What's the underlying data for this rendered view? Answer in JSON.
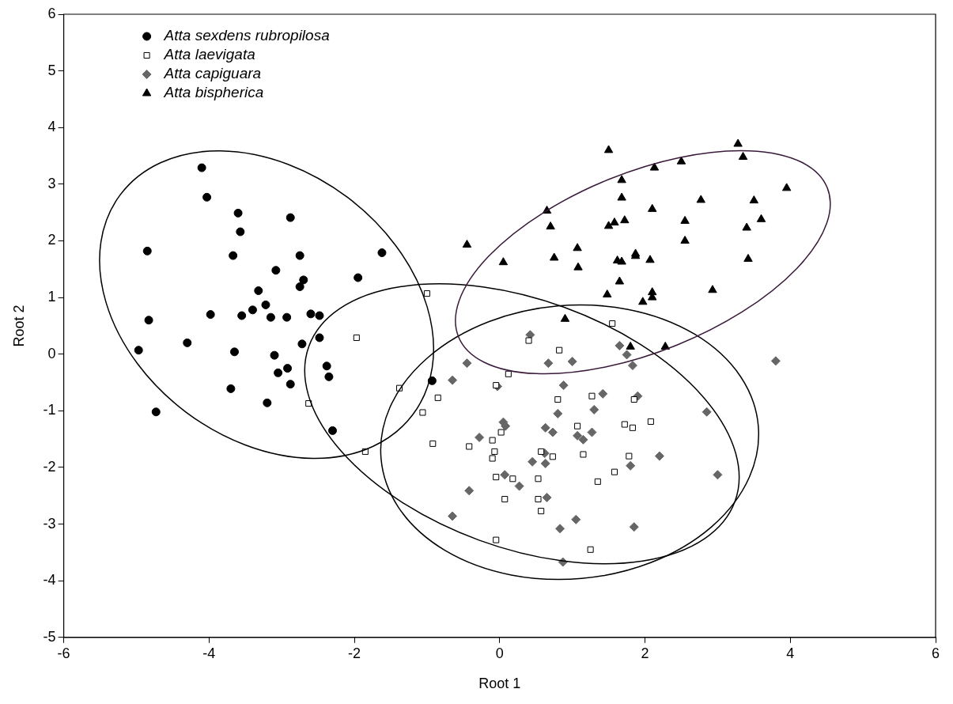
{
  "chart_data": {
    "type": "scatter",
    "xlabel": "Root 1",
    "ylabel": "Root 2",
    "xlim": [
      -6,
      6
    ],
    "xticks": [
      -6,
      -4,
      -2,
      0,
      2,
      4,
      6
    ],
    "ylim": [
      -5,
      6
    ],
    "yticks": [
      -5,
      -4,
      -3,
      -2,
      -1,
      0,
      1,
      2,
      3,
      4,
      5,
      6
    ],
    "grid": false,
    "legend": "top left",
    "series": [
      {
        "name": "Atta sexdens rubropilosa",
        "color": "#000000",
        "marker": "circle",
        "x": [
          -4.1,
          -4.03,
          -4.85,
          -3.6,
          -3.57,
          -2.88,
          -3.67,
          -1.62,
          -3.08,
          -2.75,
          -2.7,
          -2.75,
          -1.95,
          -3.32,
          -3.22,
          -3.4,
          -3.55,
          -3.98,
          -4.83,
          -3.15,
          -2.93,
          -2.6,
          -2.48,
          -2.48,
          -2.72,
          -3.65,
          -4.97,
          -4.3,
          -3.1,
          -3.05,
          -2.92,
          -2.88,
          -2.38,
          -2.35,
          -3.7,
          -3.2,
          -4.73,
          -2.3,
          -0.93
        ],
        "values": [
          3.29,
          2.77,
          1.82,
          2.49,
          2.16,
          2.41,
          1.74,
          1.79,
          1.48,
          1.74,
          1.31,
          1.19,
          1.35,
          1.12,
          0.87,
          0.78,
          0.68,
          0.7,
          0.6,
          0.65,
          0.65,
          0.71,
          0.68,
          0.29,
          0.18,
          0.04,
          0.07,
          0.2,
          -0.02,
          -0.33,
          -0.25,
          -0.53,
          -0.21,
          -0.4,
          -0.61,
          -0.86,
          -1.02,
          -1.35,
          -0.47
        ]
      },
      {
        "name": "Atta laevigata",
        "color": "#000000",
        "marker": "square",
        "x": [
          -1.0,
          -1.97,
          -2.63,
          -1.38,
          -1.06,
          -0.85,
          -1.85,
          -0.92,
          -0.42,
          -0.1,
          -0.05,
          0.12,
          0.4,
          0.82,
          1.55,
          0.8,
          0.02,
          -0.07,
          -0.1,
          -0.05,
          0.07,
          0.18,
          0.53,
          0.53,
          0.57,
          0.73,
          0.57,
          -0.05,
          1.07,
          1.15,
          1.27,
          1.35,
          1.58,
          1.72,
          1.78,
          1.83,
          1.85,
          2.08,
          1.25
        ],
        "values": [
          1.07,
          0.29,
          -0.87,
          -0.6,
          -1.03,
          -0.77,
          -1.72,
          -1.58,
          -1.63,
          -1.52,
          -0.55,
          -0.35,
          0.24,
          0.07,
          0.54,
          -0.8,
          -1.38,
          -1.72,
          -1.84,
          -2.17,
          -2.56,
          -2.2,
          -2.2,
          -2.56,
          -1.72,
          -1.81,
          -2.77,
          -3.28,
          -1.27,
          -1.77,
          -0.74,
          -2.25,
          -2.08,
          -1.24,
          -1.8,
          -1.3,
          -0.8,
          -1.19,
          -3.45
        ]
      },
      {
        "name": "Atta capiguara",
        "color": "#666666",
        "marker": "diamond",
        "x": [
          0.42,
          0.67,
          0.88,
          1.0,
          -0.45,
          -0.03,
          -0.65,
          1.65,
          1.75,
          1.83,
          1.9,
          1.42,
          1.3,
          1.27,
          1.15,
          1.07,
          0.8,
          0.73,
          0.63,
          0.05,
          0.08,
          -0.28,
          0.45,
          0.63,
          0.62,
          0.07,
          0.27,
          -0.42,
          0.65,
          -0.65,
          0.83,
          1.05,
          0.87,
          1.85,
          1.8,
          2.2,
          2.85,
          3.0,
          3.8
        ],
        "values": [
          0.34,
          -0.16,
          -0.55,
          -0.13,
          -0.16,
          -0.57,
          -0.46,
          0.15,
          -0.01,
          -0.2,
          -0.74,
          -0.7,
          -0.98,
          -1.38,
          -1.51,
          -1.44,
          -1.05,
          -1.38,
          -1.3,
          -1.2,
          -1.27,
          -1.47,
          -1.9,
          -1.93,
          -1.75,
          -2.13,
          -2.33,
          -2.41,
          -2.53,
          -2.86,
          -3.08,
          -2.92,
          -3.67,
          -3.05,
          -1.97,
          -1.8,
          -1.02,
          -2.13,
          -0.12
        ]
      },
      {
        "name": "Atta bispherica",
        "color": "#000000",
        "marker": "triangle",
        "x": [
          -0.45,
          0.05,
          0.65,
          0.7,
          0.75,
          0.9,
          1.07,
          1.08,
          1.48,
          1.5,
          1.5,
          1.58,
          1.62,
          1.68,
          1.68,
          1.68,
          1.72,
          1.87,
          1.87,
          1.65,
          1.8,
          1.97,
          2.07,
          2.1,
          2.1,
          2.1,
          2.13,
          2.28,
          2.5,
          2.55,
          2.55,
          2.77,
          2.93,
          3.28,
          3.35,
          3.4,
          3.42,
          3.5,
          3.6,
          3.95
        ],
        "values": [
          1.93,
          1.62,
          2.53,
          2.25,
          1.7,
          0.62,
          1.87,
          1.53,
          1.05,
          2.26,
          3.6,
          2.32,
          1.65,
          1.63,
          2.76,
          3.07,
          2.36,
          1.73,
          1.77,
          1.28,
          0.13,
          0.92,
          1.66,
          1.0,
          1.09,
          2.56,
          3.29,
          0.13,
          3.4,
          2.35,
          2.0,
          2.72,
          1.13,
          3.71,
          3.48,
          2.23,
          1.68,
          2.71,
          2.38,
          2.93
        ]
      }
    ]
  }
}
